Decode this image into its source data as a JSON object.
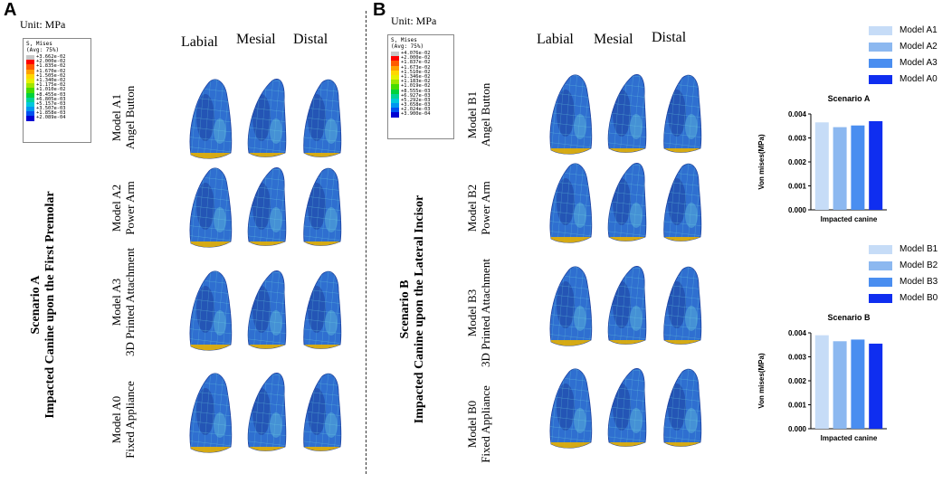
{
  "panels": {
    "A": {
      "letter": "A",
      "unit": "Unit: MPa",
      "legend": {
        "title1": "S, Mises",
        "title2": "(Avg: 75%)",
        "values": [
          "+3.662e-02",
          "+2.000e-02",
          "+1.835e-02",
          "+1.670e-02",
          "+1.505e-02",
          "+1.340e-02",
          "+1.175e-02",
          "+1.010e-02",
          "+8.455e-03",
          "+6.805e-03",
          "+5.157e-03",
          "+3.507e-03",
          "+1.858e-03",
          "+2.089e-04"
        ]
      },
      "columns": [
        "Labial",
        "Mesial",
        "Distal"
      ],
      "rows": [
        {
          "model": "Model A1",
          "appliance": "Angel Button"
        },
        {
          "model": "Model A2",
          "appliance": "Power Arm"
        },
        {
          "model": "Model A3",
          "appliance": "3D Printed Attachment"
        },
        {
          "model": "Model A0",
          "appliance": "Fixed Appliance"
        }
      ],
      "scenario_line1": "Scenario A",
      "scenario_line2": "Impacted Canine upon the First Premolar"
    },
    "B": {
      "letter": "B",
      "unit": "Unit: MPa",
      "legend": {
        "title1": "S, Mises",
        "title2": "(Avg: 75%)",
        "values": [
          "+4.076e-02",
          "+2.000e-02",
          "+1.837e-02",
          "+1.673e-02",
          "+1.510e-02",
          "+1.346e-02",
          "+1.183e-02",
          "+1.019e-02",
          "+8.555e-03",
          "+6.927e-03",
          "+5.292e-03",
          "+3.658e-03",
          "+2.024e-03",
          "+3.900e-04"
        ]
      },
      "columns": [
        "Labial",
        "Mesial",
        "Distal"
      ],
      "rows": [
        {
          "model": "Model B1",
          "appliance": "Angel Button"
        },
        {
          "model": "Model B2",
          "appliance": "Power Arm"
        },
        {
          "model": "Model B3",
          "appliance": "3D Printed Attachment"
        },
        {
          "model": "Model B0",
          "appliance": "Fixed Appliance"
        }
      ],
      "scenario_line1": "Scenario B",
      "scenario_line2": "Impacted Canine upon the Lateral Incisor"
    }
  },
  "legend_colors": [
    "#c8c8c8",
    "#ff0000",
    "#ff5a00",
    "#ffa000",
    "#ffd700",
    "#e6f000",
    "#a0e600",
    "#46dc00",
    "#00d23c",
    "#00d296",
    "#00c8dc",
    "#0096f0",
    "#0050f0",
    "#0000d2"
  ],
  "tooth_colors": {
    "base": "#2f6fd0",
    "dark": "#1c3f9e",
    "mesh": "#6fd0e0",
    "edge": "#e8b000"
  },
  "chart_data": [
    {
      "type": "bar",
      "title": "Scenario A",
      "categories": [
        "Model A1",
        "Model A2",
        "Model A3",
        "Model A0"
      ],
      "values": [
        0.00365,
        0.00345,
        0.00352,
        0.0037
      ],
      "colors": [
        "#c6dcf7",
        "#8cb8f0",
        "#4a8ef0",
        "#0f2ef0"
      ],
      "xlabel": "Impacted canine",
      "ylabel": "Von mises(MPa)",
      "ylim": [
        0,
        0.004
      ],
      "yticks": [
        "0.000",
        "0.001",
        "0.002",
        "0.003",
        "0.004"
      ],
      "grid": false
    },
    {
      "type": "bar",
      "title": "Scenario B",
      "categories": [
        "Model B1",
        "Model B2",
        "Model B3",
        "Model B0"
      ],
      "values": [
        0.0039,
        0.00365,
        0.00372,
        0.00355
      ],
      "colors": [
        "#c6dcf7",
        "#8cb8f0",
        "#4a8ef0",
        "#0f2ef0"
      ],
      "xlabel": "Impacted canine",
      "ylabel": "Von mises(MPa)",
      "ylim": [
        0,
        0.004
      ],
      "yticks": [
        "0.000",
        "0.001",
        "0.002",
        "0.003",
        "0.004"
      ],
      "grid": false
    }
  ]
}
